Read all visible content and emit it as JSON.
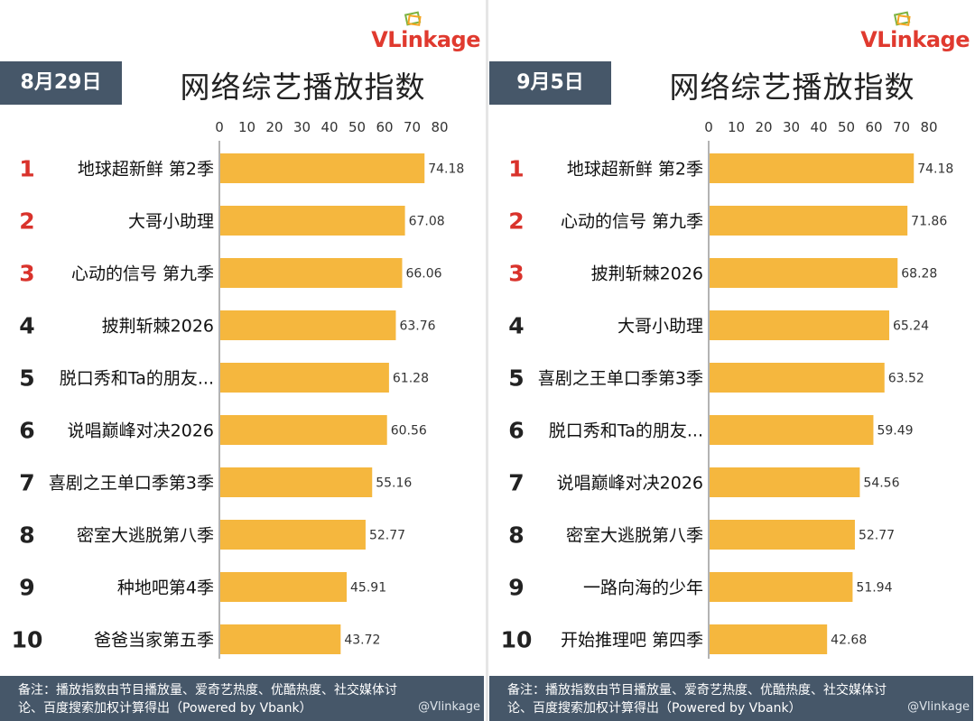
{
  "brand": {
    "logo_text": "VLinkage",
    "watermark": "@Vlinkage"
  },
  "footer_note_line1": "备注：播放指数由节目播放量、爱奇艺热度、优酷热度、社交媒体讨",
  "footer_note_line2": "论、百度搜索加权计算得出（Powered by Vbank）",
  "colors": {
    "bar": "#f5b73e",
    "rank_top3": "#d9322b",
    "rank_other": "#222222",
    "header_bg": "#465769"
  },
  "chart_data": [
    {
      "type": "bar",
      "orientation": "horizontal",
      "date": "8月29日",
      "title": "网络综艺播放指数",
      "ranks": [
        "1",
        "2",
        "3",
        "4",
        "5",
        "6",
        "7",
        "8",
        "9",
        "10"
      ],
      "categories": [
        "地球超新鲜 第2季",
        "大哥小助理",
        "心动的信号 第九季",
        "披荆斩棘2026",
        "脱口秀和Ta的朋友...",
        "说唱巅峰对决2026",
        "喜剧之王单口季第3季",
        "密室大逃脱第八季",
        "种地吧第4季",
        "爸爸当家第五季"
      ],
      "values": [
        74.18,
        67.08,
        66.06,
        63.76,
        61.28,
        60.56,
        55.16,
        52.77,
        45.91,
        43.72
      ],
      "value_labels": [
        "74.18",
        "67.08",
        "66.06",
        "63.76",
        "61.28",
        "60.56",
        "55.16",
        "52.77",
        "45.91",
        "43.72"
      ],
      "xlim": [
        0,
        80
      ],
      "xticks": [
        "0",
        "10",
        "20",
        "30",
        "40",
        "50",
        "60",
        "70",
        "80"
      ]
    },
    {
      "type": "bar",
      "orientation": "horizontal",
      "date": "9月5日",
      "title": "网络综艺播放指数",
      "ranks": [
        "1",
        "2",
        "3",
        "4",
        "5",
        "6",
        "7",
        "8",
        "9",
        "10"
      ],
      "categories": [
        "地球超新鲜 第2季",
        "心动的信号 第九季",
        "披荆斩棘2026",
        "大哥小助理",
        "喜剧之王单口季第3季",
        "脱口秀和Ta的朋友...",
        "说唱巅峰对决2026",
        "密室大逃脱第八季",
        "一路向海的少年",
        "开始推理吧 第四季"
      ],
      "values": [
        74.18,
        71.86,
        68.28,
        65.24,
        63.52,
        59.49,
        54.56,
        52.77,
        51.94,
        42.68
      ],
      "value_labels": [
        "74.18",
        "71.86",
        "68.28",
        "65.24",
        "63.52",
        "59.49",
        "54.56",
        "52.77",
        "51.94",
        "42.68"
      ],
      "xlim": [
        0,
        80
      ],
      "xticks": [
        "0",
        "10",
        "20",
        "30",
        "40",
        "50",
        "60",
        "70",
        "80"
      ]
    }
  ]
}
